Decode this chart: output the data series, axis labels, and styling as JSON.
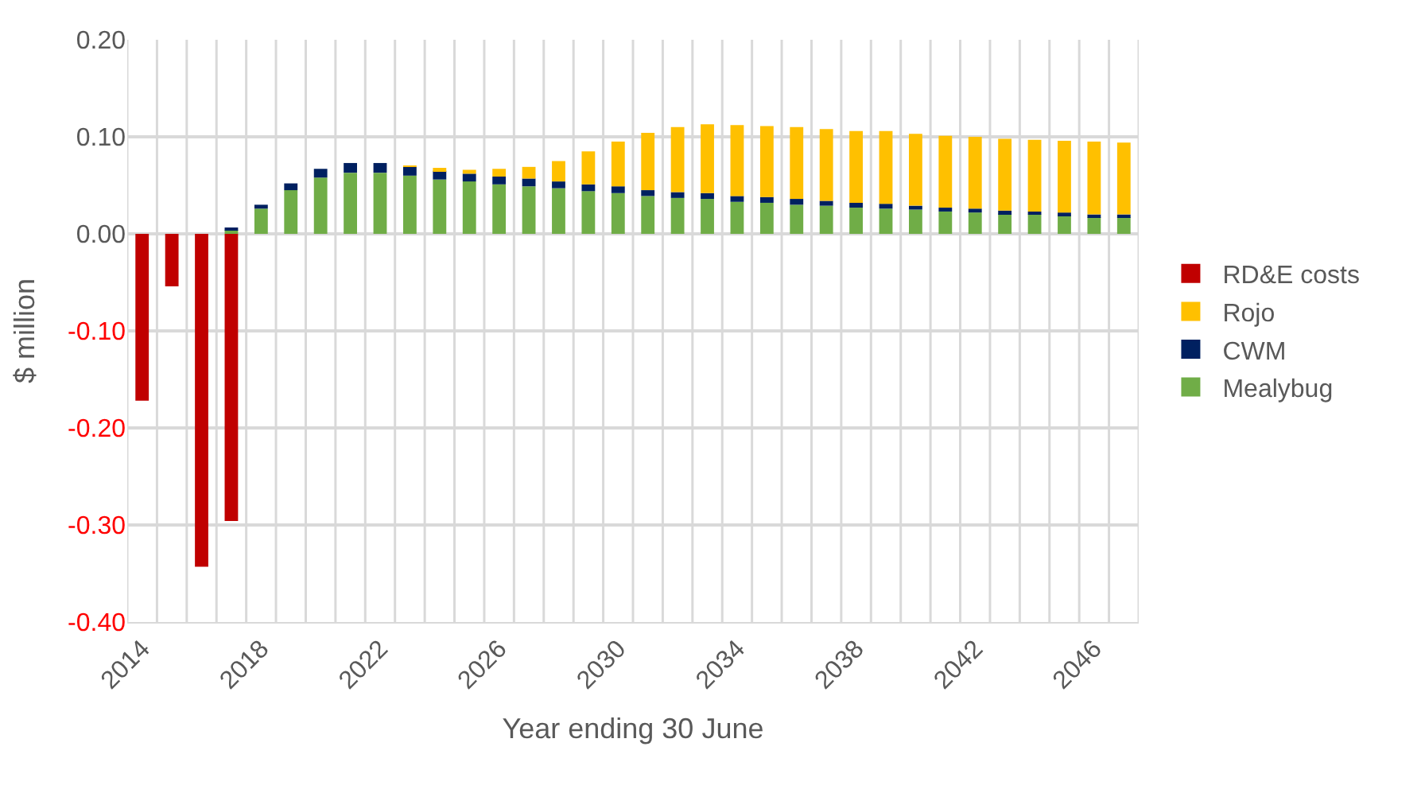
{
  "chart_data": {
    "type": "bar",
    "stacked": true,
    "xlabel": "Year ending 30 June",
    "ylabel": "$ million",
    "categories": [
      "2014",
      null,
      null,
      null,
      "2018",
      null,
      null,
      null,
      "2022",
      null,
      null,
      null,
      "2026",
      null,
      null,
      null,
      "2030",
      null,
      null,
      null,
      "2034",
      null,
      null,
      null,
      "2038",
      null,
      null,
      null,
      "2042",
      null,
      null,
      null,
      "2046",
      null
    ],
    "ylim": [
      -0.4,
      0.2
    ],
    "yticks": [
      {
        "value": -0.4,
        "label": "-0.40"
      },
      {
        "value": -0.3,
        "label": "-0.30"
      },
      {
        "value": -0.2,
        "label": "-0.20"
      },
      {
        "value": -0.1,
        "label": "-0.10"
      },
      {
        "value": 0,
        "label": "0.00"
      },
      {
        "value": 0.1,
        "label": "0.10"
      },
      {
        "value": 0.2,
        "label": "0.20"
      }
    ],
    "grid": true,
    "legend": "right",
    "series": [
      {
        "name": "Mealybug",
        "color": "#70ad47",
        "values": [
          null,
          null,
          null,
          0.004,
          0.026,
          0.045,
          0.058,
          0.063,
          0.063,
          0.06,
          0.056,
          0.054,
          0.051,
          0.049,
          0.047,
          0.044,
          0.042,
          0.039,
          0.037,
          0.036,
          0.033,
          0.032,
          0.03,
          0.029,
          0.027,
          0.026,
          0.025,
          0.023,
          0.022,
          0.021,
          0.02,
          0.019,
          0.017,
          0.017
        ]
      },
      {
        "name": "CWM",
        "color": "#002060",
        "values": [
          null,
          null,
          null,
          0.001,
          0.004,
          0.007,
          0.009,
          0.01,
          0.01,
          0.009,
          0.009,
          0.008,
          0.008,
          0.008,
          0.007,
          0.007,
          0.007,
          0.006,
          0.006,
          0.006,
          0.006,
          0.006,
          0.006,
          0.005,
          0.005,
          0.005,
          0.004,
          0.004,
          0.004,
          0.003,
          0.003,
          0.003,
          0.003,
          0.003
        ]
      },
      {
        "name": "Rojo",
        "color": "#ffc000",
        "values": [
          null,
          null,
          null,
          null,
          null,
          null,
          null,
          null,
          null,
          0.001,
          0.003,
          0.004,
          0.008,
          0.012,
          0.021,
          0.034,
          0.046,
          0.059,
          0.067,
          0.071,
          0.073,
          0.073,
          0.074,
          0.074,
          0.074,
          0.075,
          0.074,
          0.074,
          0.074,
          0.074,
          0.074,
          0.074,
          0.075,
          0.074
        ]
      },
      {
        "name": "RD&E costs",
        "color": "#c00000",
        "values": [
          -0.172,
          -0.054,
          -0.343,
          -0.296,
          null,
          null,
          null,
          null,
          null,
          null,
          null,
          null,
          null,
          null,
          null,
          null,
          null,
          null,
          null,
          null,
          null,
          null,
          null,
          null,
          null,
          null,
          null,
          null,
          null,
          null,
          null,
          null,
          null,
          null
        ]
      }
    ]
  }
}
